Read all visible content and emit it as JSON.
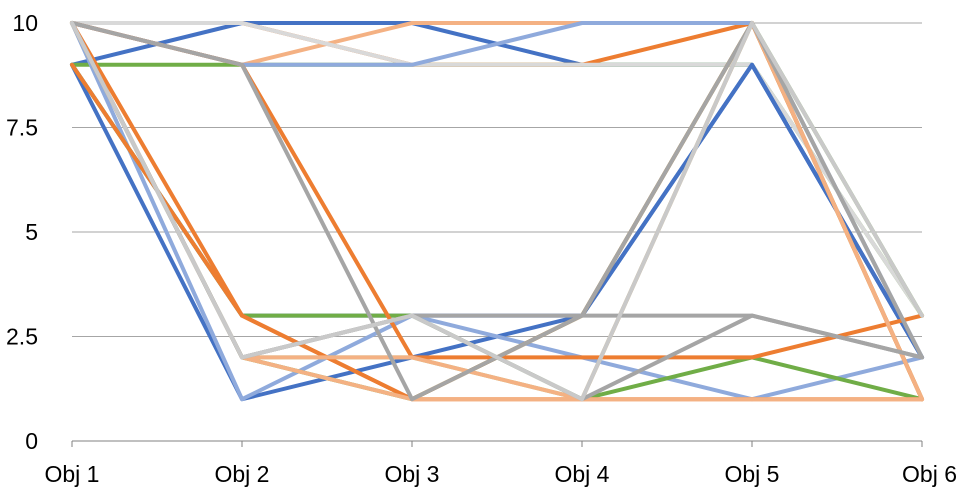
{
  "chart_data": {
    "type": "line",
    "title": "",
    "xlabel": "",
    "ylabel": "",
    "categories": [
      "Obj 1",
      "Obj 2",
      "Obj 3",
      "Obj 4",
      "Obj 5",
      "Obj 6"
    ],
    "ylim": [
      0,
      10
    ],
    "yticks": [
      "0",
      "2.5",
      "5",
      "7.5",
      "10"
    ],
    "ytick_values": [
      0,
      2.5,
      5,
      7.5,
      10
    ],
    "grid": true,
    "legend": "none",
    "series": [
      {
        "color": "#4472c4",
        "values": [
          9,
          10,
          10,
          9,
          9,
          2
        ]
      },
      {
        "color": "#70ad47",
        "values": [
          9,
          9,
          9,
          9,
          9,
          3
        ]
      },
      {
        "color": "#ed7d31",
        "values": [
          10,
          10,
          9,
          9,
          10,
          1
        ]
      },
      {
        "color": "#f4b183",
        "values": [
          10,
          9,
          10,
          10,
          10,
          1
        ]
      },
      {
        "color": "#d9d9d9",
        "values": [
          10,
          10,
          9,
          9,
          9,
          3
        ]
      },
      {
        "color": "#8faadc",
        "values": [
          10,
          9,
          9,
          10,
          10,
          2
        ]
      },
      {
        "color": "#4472c4",
        "values": [
          9,
          1,
          2,
          3,
          9,
          2
        ]
      },
      {
        "color": "#4472c4",
        "values": [
          9,
          3,
          3,
          3,
          9,
          2
        ]
      },
      {
        "color": "#8faadc",
        "values": [
          10,
          1,
          3,
          2,
          1,
          2
        ]
      },
      {
        "color": "#70ad47",
        "values": [
          10,
          2,
          1,
          3,
          10,
          3
        ]
      },
      {
        "color": "#70ad47",
        "values": [
          9,
          3,
          3,
          1,
          2,
          1
        ]
      },
      {
        "color": "#a9d18e",
        "values": [
          10,
          2,
          2,
          1,
          10,
          1
        ]
      },
      {
        "color": "#ed7d31",
        "values": [
          9,
          3,
          1,
          3,
          10,
          1
        ]
      },
      {
        "color": "#ed7d31",
        "values": [
          10,
          9,
          2,
          2,
          2,
          3
        ]
      },
      {
        "color": "#ed7d31",
        "values": [
          10,
          3,
          1,
          1,
          1,
          1
        ]
      },
      {
        "color": "#f4b183",
        "values": [
          10,
          2,
          2,
          1,
          1,
          1
        ]
      },
      {
        "color": "#f4b183",
        "values": [
          10,
          2,
          1,
          1,
          10,
          1
        ]
      },
      {
        "color": "#a5a5a5",
        "values": [
          10,
          2,
          3,
          3,
          3,
          2
        ]
      },
      {
        "color": "#a5a5a5",
        "values": [
          10,
          9,
          1,
          3,
          10,
          2
        ]
      },
      {
        "color": "#a5a5a5",
        "values": [
          10,
          2,
          3,
          1,
          3,
          2
        ]
      },
      {
        "color": "#c9c9c9",
        "values": [
          10,
          2,
          3,
          1,
          10,
          3
        ]
      }
    ]
  }
}
